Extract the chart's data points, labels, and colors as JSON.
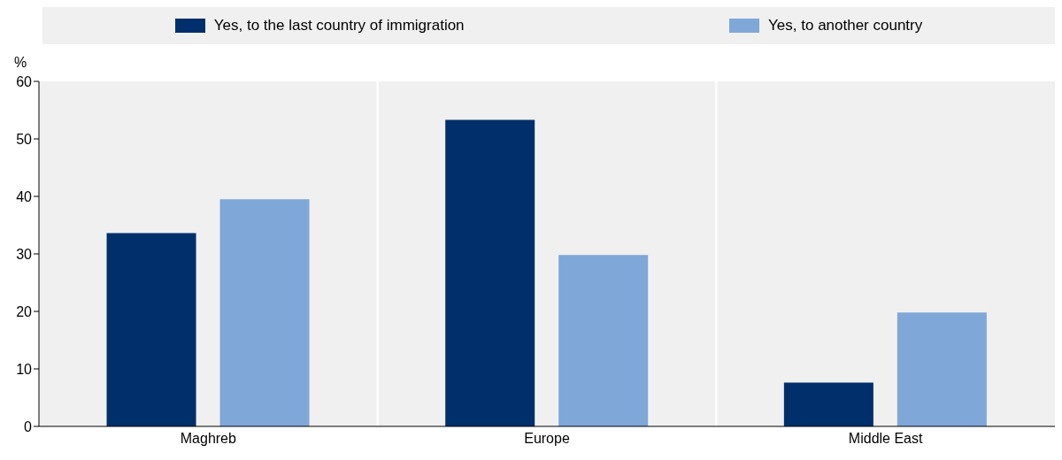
{
  "chart_data": {
    "type": "bar",
    "ylabel": "%",
    "categories": [
      "Maghreb",
      "Europe",
      "Middle East"
    ],
    "series": [
      {
        "name": "Yes, to the last country of immigration",
        "color": "#002f6c",
        "values": [
          33.6,
          53.3,
          7.6
        ]
      },
      {
        "name": "Yes, to another country",
        "color": "#7fa8d9",
        "values": [
          39.5,
          29.8,
          19.8
        ]
      }
    ],
    "ylim": [
      0,
      60
    ],
    "yticks": [
      0,
      10,
      20,
      30,
      40,
      50,
      60
    ],
    "grid": "x",
    "legend": "top"
  }
}
